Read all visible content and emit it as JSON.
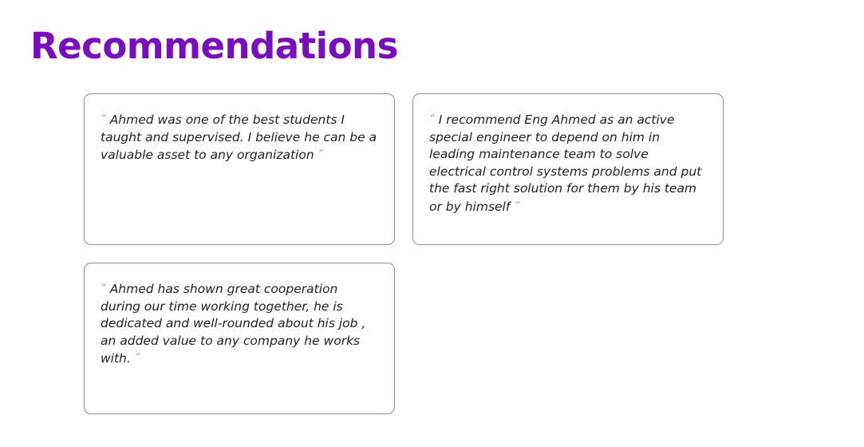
{
  "section": {
    "title": "Recommendations"
  },
  "recommendations": [
    {
      "open_quote": "“",
      "text": "Ahmed was one of the best students I taught and supervised. I believe he can be a valuable asset to any organization",
      "close_quote": "”"
    },
    {
      "open_quote": "“",
      "text": "I recommend Eng Ahmed as an active special engineer to depend on him in leading maintenance team to solve electrical control systems problems and put the fast right solution for them by his team or by himself",
      "close_quote": "”"
    },
    {
      "open_quote": "“",
      "text": "Ahmed has shown great cooperation during our time working together, he is dedicated and well-rounded about his job , an added value to any company he works with.",
      "close_quote": "”"
    }
  ],
  "colors": {
    "title": "#7a0cc4",
    "quote_marks": "#b49ad8",
    "card_border": "#8c8c8c",
    "text": "#222222"
  }
}
